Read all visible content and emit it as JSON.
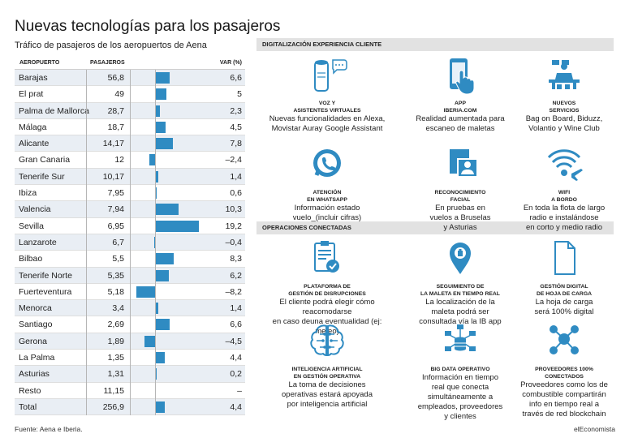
{
  "title": "Nuevas tecnologías para los pasajeros",
  "subtitle": "Tráfico de pasajeros de los aeropuertos de Aena",
  "table": {
    "headers": {
      "airport": "AEROPUERTO",
      "passengers": "PASAJEROS",
      "var": "VAR (%)"
    },
    "rows": [
      {
        "airport": "Barajas",
        "passengers": "56,8",
        "var_label": "6,6",
        "var": 6.6
      },
      {
        "airport": "El prat",
        "passengers": "49",
        "var_label": "5",
        "var": 5
      },
      {
        "airport": "Palma de Mallorca",
        "passengers": "28,7",
        "var_label": "2,3",
        "var": 2.3
      },
      {
        "airport": "Málaga",
        "passengers": "18,7",
        "var_label": "4,5",
        "var": 4.5
      },
      {
        "airport": "Alicante",
        "passengers": "14,17",
        "var_label": "7,8",
        "var": 7.8
      },
      {
        "airport": "Gran Canaria",
        "passengers": "12",
        "var_label": "–2,4",
        "var": -2.4
      },
      {
        "airport": "Tenerife Sur",
        "passengers": "10,17",
        "var_label": "1,4",
        "var": 1.4
      },
      {
        "airport": "Ibiza",
        "passengers": "7,95",
        "var_label": "0,6",
        "var": 0.6
      },
      {
        "airport": "Valencia",
        "passengers": "7,94",
        "var_label": "10,3",
        "var": 10.3
      },
      {
        "airport": "Sevilla",
        "passengers": "6,95",
        "var_label": "19,2",
        "var": 19.2
      },
      {
        "airport": "Lanzarote",
        "passengers": "6,7",
        "var_label": "–0,4",
        "var": -0.4
      },
      {
        "airport": "Bilbao",
        "passengers": "5,5",
        "var_label": "8,3",
        "var": 8.3
      },
      {
        "airport": "Tenerife Norte",
        "passengers": "5,35",
        "var_label": "6,2",
        "var": 6.2
      },
      {
        "airport": "Fuerteventura",
        "passengers": "5,18",
        "var_label": "–8,2",
        "var": -8.2
      },
      {
        "airport": "Menorca",
        "passengers": "3,4",
        "var_label": "1,4",
        "var": 1.4
      },
      {
        "airport": "Santiago",
        "passengers": "2,69",
        "var_label": "6,6",
        "var": 6.6
      },
      {
        "airport": "Gerona",
        "passengers": "1,89",
        "var_label": "–4,5",
        "var": -4.5
      },
      {
        "airport": "La Palma",
        "passengers": "1,35",
        "var_label": "4,4",
        "var": 4.4
      },
      {
        "airport": "Asturias",
        "passengers": "1,31",
        "var_label": "0,2",
        "var": 0.2
      },
      {
        "airport": "Resto",
        "passengers": "11,15",
        "var_label": "–",
        "var": null
      },
      {
        "airport": "Total",
        "passengers": "256,9",
        "var_label": "4,4",
        "var": 4.4
      }
    ]
  },
  "sections": {
    "digital": "DIGITALIZACIÓN EXPERIENCIA CLIENTE",
    "ops": "OPERACIONES CONECTADAS"
  },
  "digital_items": [
    {
      "icon": "smart-speaker-icon",
      "title": [
        "VOZ Y",
        "ASISTENTES VIRTUALES"
      ],
      "desc": [
        "Nuevas funcionalidades en Alexa,",
        "Movistar Auray Google Assistant"
      ]
    },
    {
      "icon": "app-touch-icon",
      "title": [
        "APP",
        "IBERIA.COM"
      ],
      "desc": [
        "Realidad aumentada para",
        "escaneo de maletas"
      ]
    },
    {
      "icon": "bellboy-services-icon",
      "title": [
        "NUEVOS",
        "SERVICIOS"
      ],
      "desc": [
        "Bag on Board, Biduzz,",
        "Volantio y Wine Club"
      ]
    },
    {
      "icon": "whatsapp-icon",
      "title": [
        "ATENCIÓN",
        "EN WHATSAPP"
      ],
      "desc": [
        "Información estado",
        "vuelo_(incluir cifras)"
      ]
    },
    {
      "icon": "face-recognition-icon",
      "title": [
        "RECONOCIMIENTO",
        "FACIAL"
      ],
      "desc": [
        "En pruebas en",
        "vuelos a Bruselas",
        "y Asturias"
      ]
    },
    {
      "icon": "wifi-plane-icon",
      "title": [
        "WIFI",
        "A BORDO"
      ],
      "desc": [
        "En toda la flota de largo",
        "radio e instalándose",
        "en corto y medio radio"
      ]
    }
  ],
  "ops_items": [
    {
      "icon": "clipboard-check-icon",
      "title": [
        "PLATAFORMA DE",
        "GESTIÓN DE DISRUPCIONES"
      ],
      "desc": [
        "El cliente podrá elegir cómo reacomodarse",
        "en caso deuna eventualidad (ej: meteo)"
      ]
    },
    {
      "icon": "location-pin-icon",
      "title": [
        "SEGUIMIENTO DE",
        "LA MALETA EN TIEMPO REAL"
      ],
      "desc": [
        "La localización de la",
        "maleta podrá ser",
        "consultada vía la IB app"
      ]
    },
    {
      "icon": "document-icon",
      "title": [
        "GESTIÓN DIGITAL",
        "DE HOJA DE CARGA"
      ],
      "desc": [
        "La hoja de carga",
        "será 100% digital"
      ]
    },
    {
      "icon": "ai-brain-icon",
      "title": [
        "INTELIGENCIA ARTIFICIAL",
        "EN GESTIÓN OPERATIVA"
      ],
      "desc": [
        "La toma de decisiones",
        "operativas estará apoyada",
        "por inteligencia artificial"
      ]
    },
    {
      "icon": "big-data-icon",
      "title": [
        "BIG DATA OPERATIVO"
      ],
      "desc": [
        "Información en tiempo",
        "real que conecta",
        "simultáneamente a",
        "empleados, proveedores",
        "y clientes"
      ]
    },
    {
      "icon": "blockchain-icon",
      "title": [
        "PROVEEDORES 100%",
        "CONECTADOS"
      ],
      "desc": [
        "Proveedores como los de",
        "combustible compartirán",
        "info en tiempo real a",
        "través de red blockchain"
      ]
    }
  ],
  "footer": {
    "source": "Fuente: Aena e Iberia.",
    "brand": "elEconomista"
  },
  "colors": {
    "bar": "#2f8bc2",
    "icon": "#2f8bc2",
    "section_bg": "#e2e2e2",
    "row_shade": "#e9eef4"
  }
}
